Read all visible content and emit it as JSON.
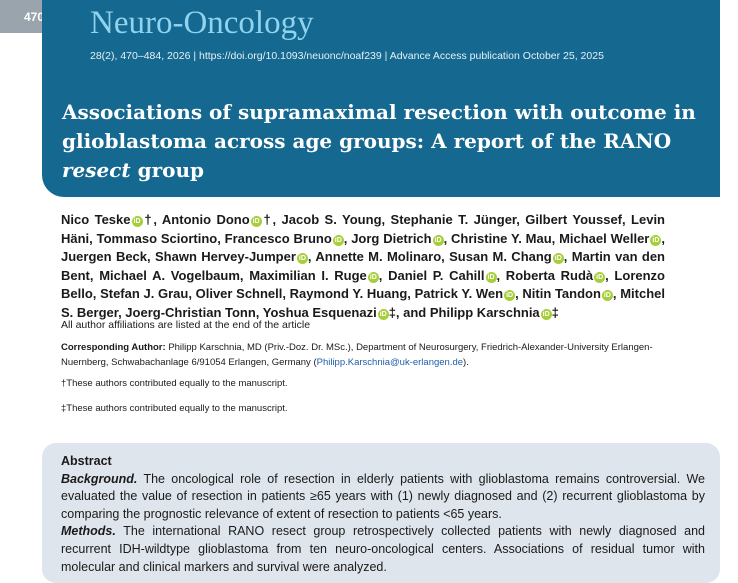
{
  "page_number": "470",
  "header": {
    "journal": "Neuro-Oncology",
    "citation": "28(2), 470–484, 2026 | https://doi.org/10.1093/neuonc/noaf239 | Advance Access publication October 25, 2025",
    "title": {
      "before": "Associations of supramaximal resection with outcome in glioblastoma across age groups: A report of the RANO ",
      "italic": "resect",
      "after": " group"
    }
  },
  "authors": [
    "Nico Teske",
    "†, Antonio Dono",
    "†, Jacob S. Young, Stephanie T. Jünger, Gilbert Youssef, Levin Häni, Tommaso Sciortino, Francesco Bruno",
    ", Jorg Dietrich",
    ", Christine Y. Mau, Michael Weller",
    ", Juergen Beck, Shawn Hervey-Jumper",
    ", Annette M. Molinaro, Susan M. Chang",
    ", Martin van den Bent, Michael A. Vogelbaum, Maximilian I. Ruge",
    ", Daniel P. Cahill",
    ", Roberta Rudà",
    ", Lorenzo Bello, Stefan J. Grau, Oliver Schnell, Raymond Y. Huang, Patrick Y. Wen",
    ", Nitin Tandon",
    ", Mitchel S. Berger, Joerg-Christian Tonn, Yoshua Esquenazi",
    "‡, and Philipp Karschnia",
    "‡"
  ],
  "affiliation_note": "All author affiliations are listed at the end of the article",
  "corresponding": {
    "label": "Corresponding Author:",
    "text": "Philipp Karschnia, MD (Priv.-Doz. Dr. MSc.), Department of Neurosurgery, Friedrich-Alexander-University Erlangen-Nuernberg, Schwabachanlage 6/91054 Erlangen, Germany (",
    "email": "Philipp.Karschnia@uk-erlangen.de",
    "after": ")."
  },
  "footnotes": [
    "†These authors contributed equally to the manuscript.",
    "‡These authors contributed equally to the manuscript."
  ],
  "abstract": {
    "heading": "Abstract",
    "sections": [
      {
        "label": "Background.",
        "text": "The oncological role of resection in elderly patients with glioblastoma remains controversial. We evaluated the value of resection in patients ≥65 years with (1) newly diagnosed and (2) recurrent glioblastoma by comparing the prognostic relevance of extent of resection to patients <65 years."
      },
      {
        "label": "Methods.",
        "text": "The international RANO resect group retrospectively collected patients with newly diagnosed and recurrent IDH-wildtype glioblastoma from ten neuro-oncological centers. Associations of residual tumor with molecular and clinical markers and survival were analyzed."
      }
    ]
  }
}
